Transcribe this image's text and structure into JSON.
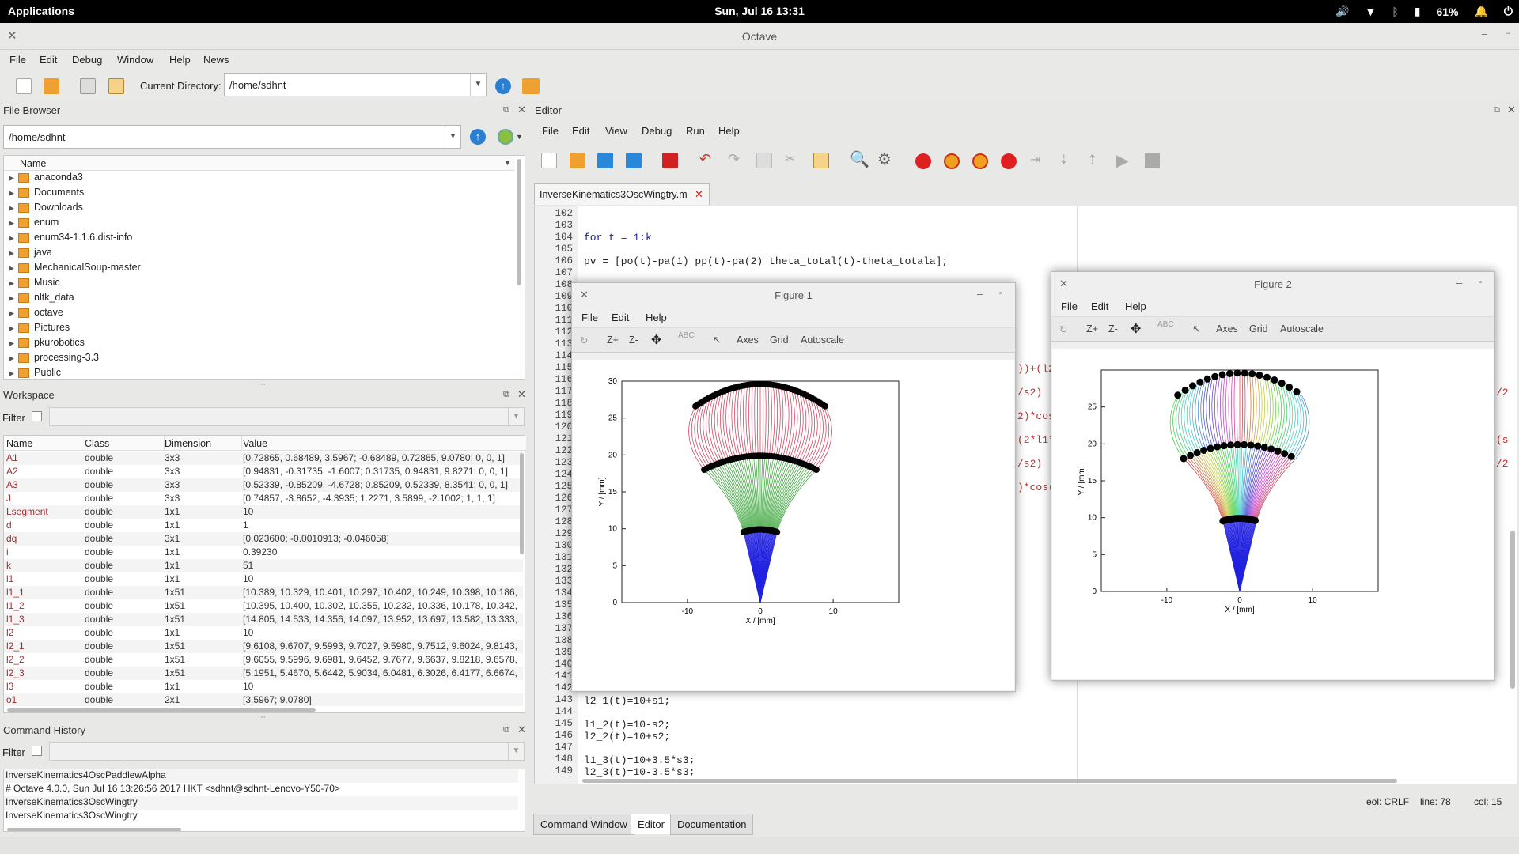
{
  "topbar": {
    "applications": "Applications",
    "clock": "Sun, Jul 16   13:31",
    "battery": "61%"
  },
  "window": {
    "title": "Octave"
  },
  "menu": [
    "File",
    "Edit",
    "Debug",
    "Window",
    "Help",
    "News"
  ],
  "toolbar": {
    "current_dir_label": "Current Directory:",
    "current_dir": "/home/sdhnt"
  },
  "file_browser": {
    "title": "File Browser",
    "path": "/home/sdhnt",
    "col_name": "Name",
    "items": [
      "anaconda3",
      "Documents",
      "Downloads",
      "enum",
      "enum34-1.1.6.dist-info",
      "java",
      "MechanicalSoup-master",
      "Music",
      "nltk_data",
      "octave",
      "Pictures",
      "pkurobotics",
      "processing-3.3",
      "Public"
    ]
  },
  "workspace": {
    "title": "Workspace",
    "filter_label": "Filter",
    "cols": [
      "Name",
      "Class",
      "Dimension",
      "Value"
    ],
    "rows": [
      [
        "A1",
        "double",
        "3x3",
        "[0.72865, 0.68489, 3.5967; -0.68489, 0.72865, 9.0780; 0, 0, 1]"
      ],
      [
        "A2",
        "double",
        "3x3",
        "[0.94831, -0.31735, -1.6007; 0.31735, 0.94831, 9.8271; 0, 0, 1]"
      ],
      [
        "A3",
        "double",
        "3x3",
        "[0.52339, -0.85209, -4.6728; 0.85209, 0.52339, 8.3541; 0, 0, 1]"
      ],
      [
        "J",
        "double",
        "3x3",
        "[0.74857, -3.8652, -4.3935; 1.2271, 3.5899, -2.1002; 1, 1, 1]"
      ],
      [
        "Lsegment",
        "double",
        "1x1",
        "10"
      ],
      [
        "d",
        "double",
        "1x1",
        "1"
      ],
      [
        "dq",
        "double",
        "3x1",
        "[0.023600; -0.0010913; -0.046058]"
      ],
      [
        "i",
        "double",
        "1x1",
        "0.39230"
      ],
      [
        "k",
        "double",
        "1x1",
        "51"
      ],
      [
        "l1",
        "double",
        "1x1",
        "10"
      ],
      [
        "l1_1",
        "double",
        "1x51",
        "[10.389, 10.329, 10.401, 10.297, 10.402, 10.249, 10.398, 10.186,"
      ],
      [
        "l1_2",
        "double",
        "1x51",
        "[10.395, 10.400, 10.302, 10.355, 10.232, 10.336, 10.178, 10.342,"
      ],
      [
        "l1_3",
        "double",
        "1x51",
        "[14.805, 14.533, 14.356, 14.097, 13.952, 13.697, 13.582, 13.333,"
      ],
      [
        "l2",
        "double",
        "1x1",
        "10"
      ],
      [
        "l2_1",
        "double",
        "1x51",
        "[9.6108, 9.6707, 9.5993, 9.7027, 9.5980, 9.7512, 9.6024, 9.8143,"
      ],
      [
        "l2_2",
        "double",
        "1x51",
        "[9.6055, 9.5996, 9.6981, 9.6452, 9.7677, 9.6637, 9.8218, 9.6578,"
      ],
      [
        "l2_3",
        "double",
        "1x51",
        "[5.1951, 5.4670, 5.6442, 5.9034, 6.0481, 6.3026, 6.4177, 6.6674,"
      ],
      [
        "l3",
        "double",
        "1x1",
        "10"
      ],
      [
        "o1",
        "double",
        "2x1",
        "[3.5967; 9.0780]"
      ]
    ]
  },
  "history": {
    "title": "Command History",
    "filter_label": "Filter",
    "items": [
      "InverseKinematics4OscPaddlewAlpha",
      "# Octave 4.0.0, Sun Jul 16 13:26:56 2017 HKT <sdhnt@sdhnt-Lenovo-Y50-70>",
      "InverseKinematics3OscWingtry",
      "InverseKinematics3OscWingtry"
    ]
  },
  "editor": {
    "title": "Editor",
    "menu": [
      "File",
      "Edit",
      "View",
      "Debug",
      "Run",
      "Help"
    ],
    "tab": "InverseKinematics3OscWingtry.m",
    "line_numbers": [
      "102",
      "103",
      "104",
      "105",
      "106",
      "107",
      "108",
      "109",
      "110",
      "111",
      "112",
      "113",
      "114",
      "115",
      "116",
      "117",
      "118",
      "119",
      "120",
      "121",
      "122",
      "123",
      "124",
      "125",
      "126",
      "127",
      "128",
      "129",
      "130",
      "131",
      "132",
      "133",
      "134",
      "135",
      "136",
      "137",
      "138",
      "139",
      "140",
      "141",
      "142",
      "143",
      "144",
      "145",
      "146",
      "147",
      "148",
      "149"
    ],
    "code": {
      "l104": "for t = 1:k",
      "l106": "pv = [po(t)-pa(1) pp(t)-pa(2) theta_total(t)-theta_totala];",
      "l143": "l2_1(t)=10+s1;",
      "l145": "l1_2(t)=10-s2;",
      "l146": "l2_2(t)=10+s2;",
      "l148": "l1_3(t)=10+3.5*s3;",
      "l149": "l2_3(t)=10-3.5*s3;"
    },
    "fragments": [
      "))+(l2",
      "/s2)",
      "2)*cos",
      "(2*l1*",
      "/s2)",
      ")*cos("
    ],
    "fragments_right": [
      "/2",
      "(s",
      "/2"
    ],
    "status": {
      "eol": "eol:  CRLF",
      "line": "line:  78",
      "col": "col:  15"
    },
    "bottom_tabs": [
      "Command Window",
      "Editor",
      "Documentation"
    ]
  },
  "figure1": {
    "title": "Figure 1",
    "menu": [
      "File",
      "Edit",
      "Help"
    ],
    "tools": [
      "Z+",
      "Z-",
      "Axes",
      "Grid",
      "Autoscale"
    ],
    "abc": "ABC"
  },
  "figure2": {
    "title": "Figure 2",
    "menu": [
      "File",
      "Edit",
      "Help"
    ],
    "tools": [
      "Z+",
      "Z-",
      "Axes",
      "Grid",
      "Autoscale"
    ],
    "abc": "ABC"
  },
  "chart_data": [
    {
      "type": "line",
      "title": "",
      "xlabel": "X / [mm]",
      "ylabel": "Y / [mm]",
      "xlim": [
        -19,
        19
      ],
      "ylim": [
        0,
        30
      ],
      "xticks": [
        "-10",
        "0",
        "10"
      ],
      "yticks": [
        "0",
        "5",
        "10",
        "15",
        "20",
        "25",
        "30"
      ],
      "colors": {
        "link3": "#d03050",
        "link2": "#30a030",
        "link1": "#2020e0",
        "joints": "#000000"
      }
    },
    {
      "type": "line",
      "title": "",
      "xlabel": "X / [mm]",
      "ylabel": "Y / [mm]",
      "xlim": [
        -19,
        19
      ],
      "ylim": [
        0,
        30
      ],
      "xticks": [
        "-10",
        "0",
        "10"
      ],
      "yticks": [
        "0",
        "5",
        "10",
        "15",
        "20",
        "25"
      ],
      "colors": {
        "link1": "#2020e0",
        "joints": "#000000"
      }
    }
  ]
}
